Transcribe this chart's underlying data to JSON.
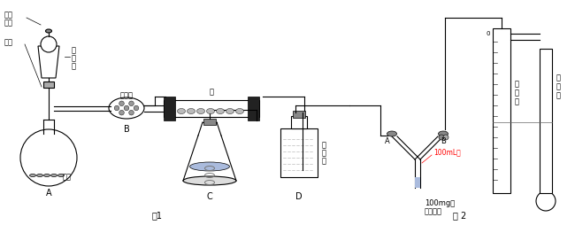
{
  "title": "",
  "fig1_label": "图1",
  "fig2_label": "图 2",
  "labels": {
    "funnel_top": "分液",
    "funnel_mid": "漏斗",
    "piston": "活塞",
    "alkali_lime": "碱石灰",
    "calcium": "钙",
    "zinc": "锌粒",
    "A": "A",
    "B_fig1": "B",
    "C": "C",
    "D": "D",
    "A_fig2": "A",
    "B_fig2": "B",
    "gas_tube": "量气管",
    "level_tube": "水准管",
    "zero": "0"
  },
  "background_color": "#ffffff",
  "line_color": "#000000",
  "red_text_color": "#ff0000",
  "figsize": [
    6.5,
    2.54
  ],
  "dpi": 100
}
